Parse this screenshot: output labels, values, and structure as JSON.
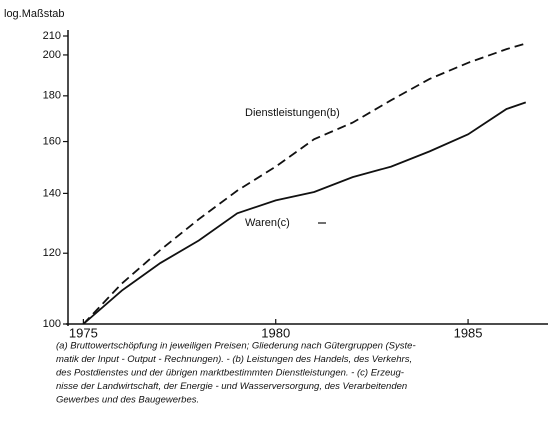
{
  "chart_data": {
    "type": "line",
    "y_axis_label": "log.Maßstab",
    "log_y": true,
    "x": [
      1975,
      1976,
      1977,
      1978,
      1979,
      1980,
      1981,
      1982,
      1983,
      1984,
      1985,
      1986,
      1986.5
    ],
    "series": [
      {
        "name": "Dienstleistungen(b)",
        "color": "#111111",
        "dash": true,
        "values": [
          100,
          111,
          121,
          131,
          141,
          150,
          161,
          168,
          178,
          188,
          196,
          203,
          206
        ]
      },
      {
        "name": "Waren(c)",
        "color": "#111111",
        "dash": false,
        "values": [
          100,
          109,
          117,
          124,
          133,
          137.5,
          140.5,
          146,
          150,
          156,
          163,
          174,
          177
        ]
      }
    ],
    "xlim": [
      1974.6,
      1987
    ],
    "xticks": [
      1975,
      1980,
      1985
    ],
    "ylim": [
      100,
      210
    ],
    "yticks": [
      100,
      120,
      140,
      160,
      180,
      200,
      210
    ],
    "footnote": [
      "(a) Bruttowertschöpfung in jeweiligen Preisen; Gliederung nach Gütergruppen (Syste-",
      "matik der Input - Output - Rechnungen). - (b) Leistungen des Handels, des Verkehrs,",
      "des Postdienstes und der übrigen marktbestimmten Dienstleistungen. - (c) Erzeug-",
      "nisse der Landwirtschaft, der Energie - und Wasserversorgung, des Verarbeitenden",
      "Gewerbes und des Baugewerbes."
    ]
  }
}
